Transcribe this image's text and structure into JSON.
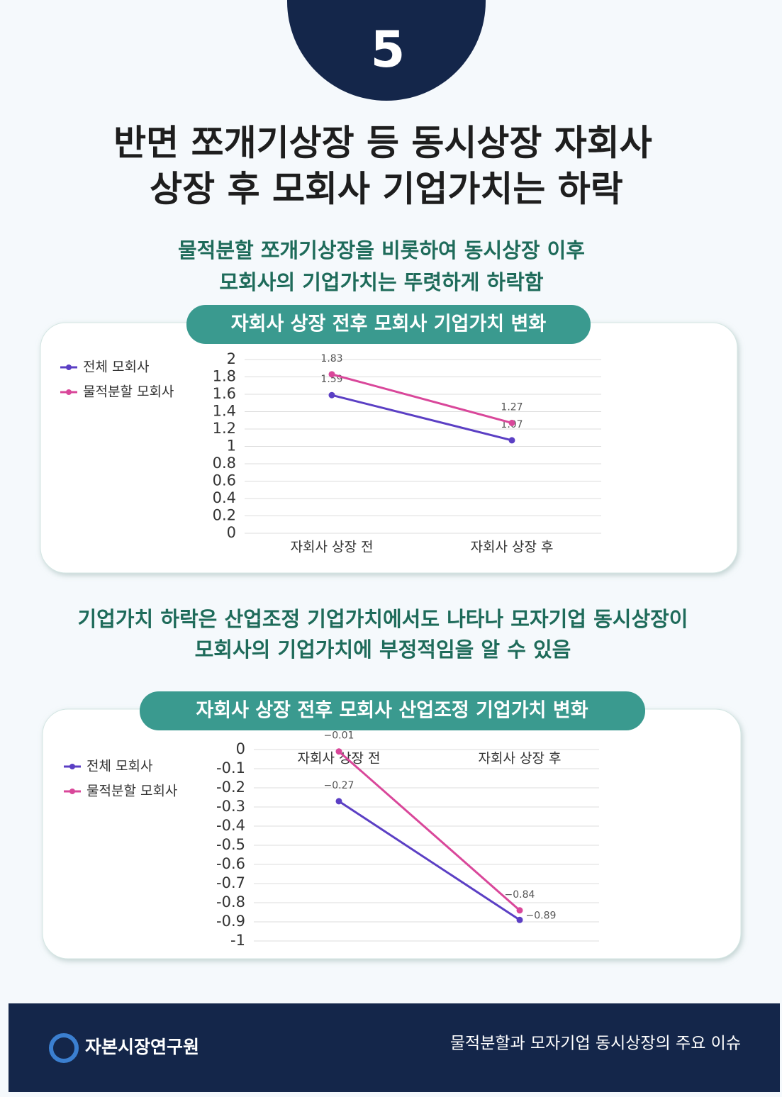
{
  "page_number": "5",
  "title": [
    "반면 쪼개기상장 등 동시상장 자회사",
    "상장 후 모회사  기업가치는 하락"
  ],
  "subtitle_1": [
    "물적분할 쪼개기상장을 비롯하여 동시상장 이후",
    "모회사의 기업가치는 뚜렷하게 하락함"
  ],
  "subtitle_2": [
    "기업가치 하락은 산업조정 기업가치에서도 나타나 모자기업 동시상장이",
    "모회사의 기업가치에 부정적임을 알 수 있음"
  ],
  "chart_data": [
    {
      "type": "line",
      "title": "자회사 상장 전후 모회사 기업가치 변화",
      "categories": [
        "자회사 상장 전",
        "자회사 상장 후"
      ],
      "series": [
        {
          "name": "전체 모회사",
          "color": "#5b3fc4",
          "values": [
            1.59,
            1.07
          ]
        },
        {
          "name": "물적분할 모회사",
          "color": "#d9479a",
          "values": [
            1.83,
            1.27
          ]
        }
      ],
      "ylim": [
        0,
        2
      ],
      "yticks": [
        0,
        0.2,
        0.4,
        0.6,
        0.8,
        1,
        1.2,
        1.4,
        1.6,
        1.8,
        2
      ],
      "grid": true,
      "legend": "left"
    },
    {
      "type": "line",
      "title": "자회사 상장 전후 모회사 산업조정 기업가치 변화",
      "categories": [
        "자회사 상장 전",
        "자회사 상장 후"
      ],
      "series": [
        {
          "name": "전체 모회사",
          "color": "#5b3fc4",
          "values": [
            -0.27,
            -0.89
          ],
          "value_labels": [
            "−0.27",
            "−0.89"
          ]
        },
        {
          "name": "물적분할 모회사",
          "color": "#d9479a",
          "values": [
            -0.01,
            -0.84
          ],
          "value_labels": [
            "−0.01",
            "−0.84"
          ]
        }
      ],
      "ylim": [
        -1,
        0
      ],
      "yticks": [
        0,
        -0.1,
        -0.2,
        -0.3,
        -0.4,
        -0.5,
        -0.6,
        -0.7,
        -0.8,
        -0.9,
        -1
      ],
      "grid": true,
      "legend": "left"
    }
  ],
  "footer": {
    "org": "자본시장연구원",
    "series_title": "물적분할과 모자기업 동시상장의 주요 이슈"
  }
}
